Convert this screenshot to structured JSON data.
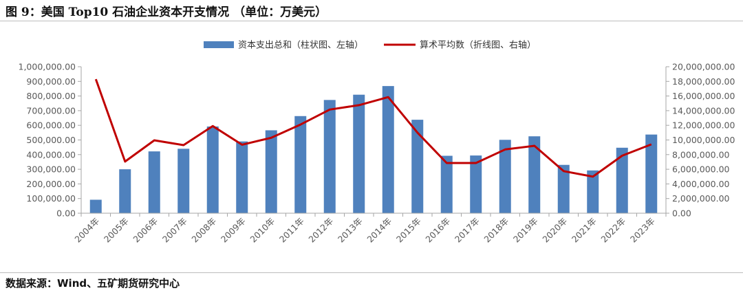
{
  "header": {
    "title": "图 9：美国 Top10 石油企业资本开支情况 （单位：万美元）"
  },
  "footer": {
    "source": "数据来源：Wind、五矿期货研究中心"
  },
  "colors": {
    "bar": "#4f81bd",
    "line": "#c00000",
    "axis": "#a6a6a6",
    "text": "#595959"
  },
  "chart_data": {
    "type": "bar",
    "categories": [
      "2004年",
      "2005年",
      "2006年",
      "2007年",
      "2008年",
      "2009年",
      "2010年",
      "2011年",
      "2012年",
      "2013年",
      "2014年",
      "2015年",
      "2016年",
      "2017年",
      "2018年",
      "2019年",
      "2020年",
      "2021年",
      "2022年",
      "2023年"
    ],
    "series": [
      {
        "name": "资本支出总和（柱状图、左轴）",
        "type": "bar",
        "axis": "left",
        "values": [
          92000,
          300000,
          422000,
          440000,
          592000,
          490000,
          566000,
          663000,
          773000,
          809000,
          868000,
          638000,
          392000,
          394000,
          501000,
          525000,
          330000,
          292000,
          447000,
          537000
        ]
      },
      {
        "name": "算术平均数（折线图、右轴）",
        "type": "line",
        "axis": "right",
        "values": [
          18300000,
          7050000,
          9950000,
          9300000,
          11900000,
          9350000,
          10300000,
          12100000,
          14150000,
          14750000,
          15850000,
          11000000,
          6850000,
          6850000,
          8700000,
          9200000,
          5750000,
          5000000,
          7850000,
          9400000
        ]
      }
    ],
    "y_left": {
      "min": 0,
      "max": 1000000,
      "step": 100000,
      "ticks": [
        "0.00",
        "100,000.00",
        "200,000.00",
        "300,000.00",
        "400,000.00",
        "500,000.00",
        "600,000.00",
        "700,000.00",
        "800,000.00",
        "900,000.00",
        "1,000,000.00"
      ]
    },
    "y_right": {
      "min": 0,
      "max": 20000000,
      "step": 2000000,
      "ticks": [
        "0.00",
        "2,000,000.00",
        "4,000,000.00",
        "6,000,000.00",
        "8,000,000.00",
        "10,000,000.00",
        "12,000,000.00",
        "14,000,000.00",
        "16,000,000.00",
        "18,000,000.00",
        "20,000,000.00"
      ]
    },
    "legend_position": "top-center",
    "grid": false
  }
}
